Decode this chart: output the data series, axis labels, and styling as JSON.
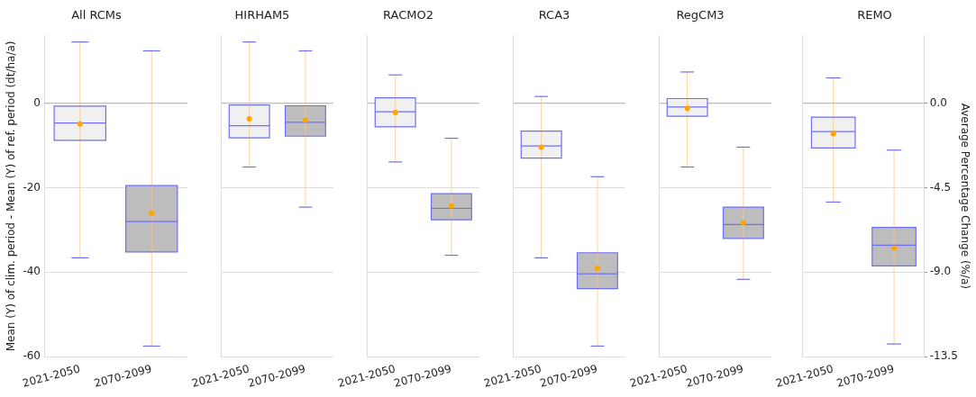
{
  "chart_data": [
    {
      "type": "box",
      "title": "All RCMs",
      "ylabel": "Mean (Y) of clim. period - Mean (Y) of ref. period (dt/ha/a)",
      "categories": [
        "2021-2050",
        "2070-2099"
      ],
      "colors": [
        "#f0f0f0",
        "#bdbdbd"
      ],
      "boxes": [
        {
          "low": -36.6,
          "q1": -8.8,
          "median": -4.7,
          "q3": -0.7,
          "high": 14.5,
          "mean": -4.9
        },
        {
          "low": -57.5,
          "q1": -35.2,
          "median": -28.0,
          "q3": -19.5,
          "high": 12.4,
          "mean": -26.0
        }
      ],
      "ylim": [
        -60,
        16
      ],
      "yticks": [
        -60,
        -40,
        -20,
        0
      ],
      "grid": "y",
      "ref_lines": [
        {
          "axis": "y",
          "value": 0,
          "color": "#bbbbbb"
        }
      ]
    },
    {
      "type": "box",
      "title": "HIRHAM5",
      "categories": [
        "2021-2050",
        "2070-2099"
      ],
      "colors": [
        "#f0f0f0",
        "#bdbdbd"
      ],
      "boxes": [
        {
          "low": -15.1,
          "q1": -8.2,
          "median": -5.3,
          "q3": -0.4,
          "high": 14.5,
          "mean": -3.7
        },
        {
          "low": -24.6,
          "q1": -7.8,
          "median": -4.5,
          "q3": -0.6,
          "high": 12.4,
          "mean": -4.0
        }
      ],
      "ylim": [
        -60,
        16
      ],
      "yticks": [
        -60,
        -40,
        -20,
        0
      ],
      "grid": "y",
      "tick_labels": "x",
      "ref_lines": [
        {
          "axis": "y",
          "value": 0,
          "color": "#bbbbbb"
        }
      ]
    },
    {
      "type": "box",
      "title": "RACMO2",
      "categories": [
        "2021-2050",
        "2070-2099"
      ],
      "colors": [
        "#f0f0f0",
        "#bdbdbd"
      ],
      "boxes": [
        {
          "low": -13.9,
          "q1": -5.6,
          "median": -2.0,
          "q3": 1.3,
          "high": 6.7,
          "mean": -2.2
        },
        {
          "low": -36.0,
          "q1": -27.6,
          "median": -24.9,
          "q3": -21.4,
          "high": -8.3,
          "mean": -24.3
        }
      ],
      "ylim": [
        -60,
        16
      ],
      "yticks": [
        -60,
        -40,
        -20,
        0
      ],
      "grid": "y",
      "tick_labels": "x",
      "ref_lines": [
        {
          "axis": "y",
          "value": 0,
          "color": "#bbbbbb"
        }
      ]
    },
    {
      "type": "box",
      "title": "RCA3",
      "categories": [
        "2021-2050",
        "2070-2099"
      ],
      "colors": [
        "#f0f0f0",
        "#bdbdbd"
      ],
      "boxes": [
        {
          "low": -36.6,
          "q1": -13.0,
          "median": -10.1,
          "q3": -6.6,
          "high": 1.6,
          "mean": -10.4
        },
        {
          "low": -57.5,
          "q1": -43.9,
          "median": -40.4,
          "q3": -35.4,
          "high": -17.4,
          "mean": -39.1
        }
      ],
      "ylim": [
        -60,
        16
      ],
      "yticks": [
        -60,
        -40,
        -20,
        0
      ],
      "grid": "y",
      "tick_labels": "x",
      "ref_lines": [
        {
          "axis": "y",
          "value": 0,
          "color": "#bbbbbb"
        }
      ]
    },
    {
      "type": "box",
      "title": "RegCM3",
      "categories": [
        "2021-2050",
        "2070-2099"
      ],
      "colors": [
        "#f0f0f0",
        "#bdbdbd"
      ],
      "boxes": [
        {
          "low": -15.1,
          "q1": -3.1,
          "median": -0.9,
          "q3": 1.1,
          "high": 7.4,
          "mean": -1.2
        },
        {
          "low": -41.7,
          "q1": -32.0,
          "median": -28.7,
          "q3": -24.6,
          "high": -10.4,
          "mean": -28.3
        }
      ],
      "ylim": [
        -60,
        16
      ],
      "yticks": [
        -60,
        -40,
        -20,
        0
      ],
      "grid": "y",
      "tick_labels": "x",
      "ref_lines": [
        {
          "axis": "y",
          "value": 0,
          "color": "#bbbbbb"
        }
      ]
    },
    {
      "type": "box",
      "title": "REMO",
      "y2label": "Average Percentage Change (%/a)",
      "categories": [
        "2021-2050",
        "2070-2099"
      ],
      "colors": [
        "#f0f0f0",
        "#bdbdbd"
      ],
      "boxes": [
        {
          "low": -23.4,
          "q1": -10.6,
          "median": -6.7,
          "q3": -3.3,
          "high": 6.0,
          "mean": -7.2
        },
        {
          "low": -57.0,
          "q1": -38.5,
          "median": -33.6,
          "q3": -29.4,
          "high": -11.1,
          "mean": -34.3
        }
      ],
      "ylim": [
        -60,
        16
      ],
      "yticks": [
        -60,
        -40,
        -20,
        0
      ],
      "y2lim": [
        -13.5,
        3.6
      ],
      "y2ticks": [
        {
          "value": -13.5,
          "label": "-13.5"
        },
        {
          "value": -9,
          "label": "-9.0"
        },
        {
          "value": -4.5,
          "label": "-4.5"
        },
        {
          "value": 0,
          "label": "0.0"
        }
      ],
      "grid": "y",
      "tick_labels": "x",
      "ref_lines": [
        {
          "axis": "y",
          "value": 0,
          "color": "#bbbbbb"
        }
      ]
    }
  ]
}
